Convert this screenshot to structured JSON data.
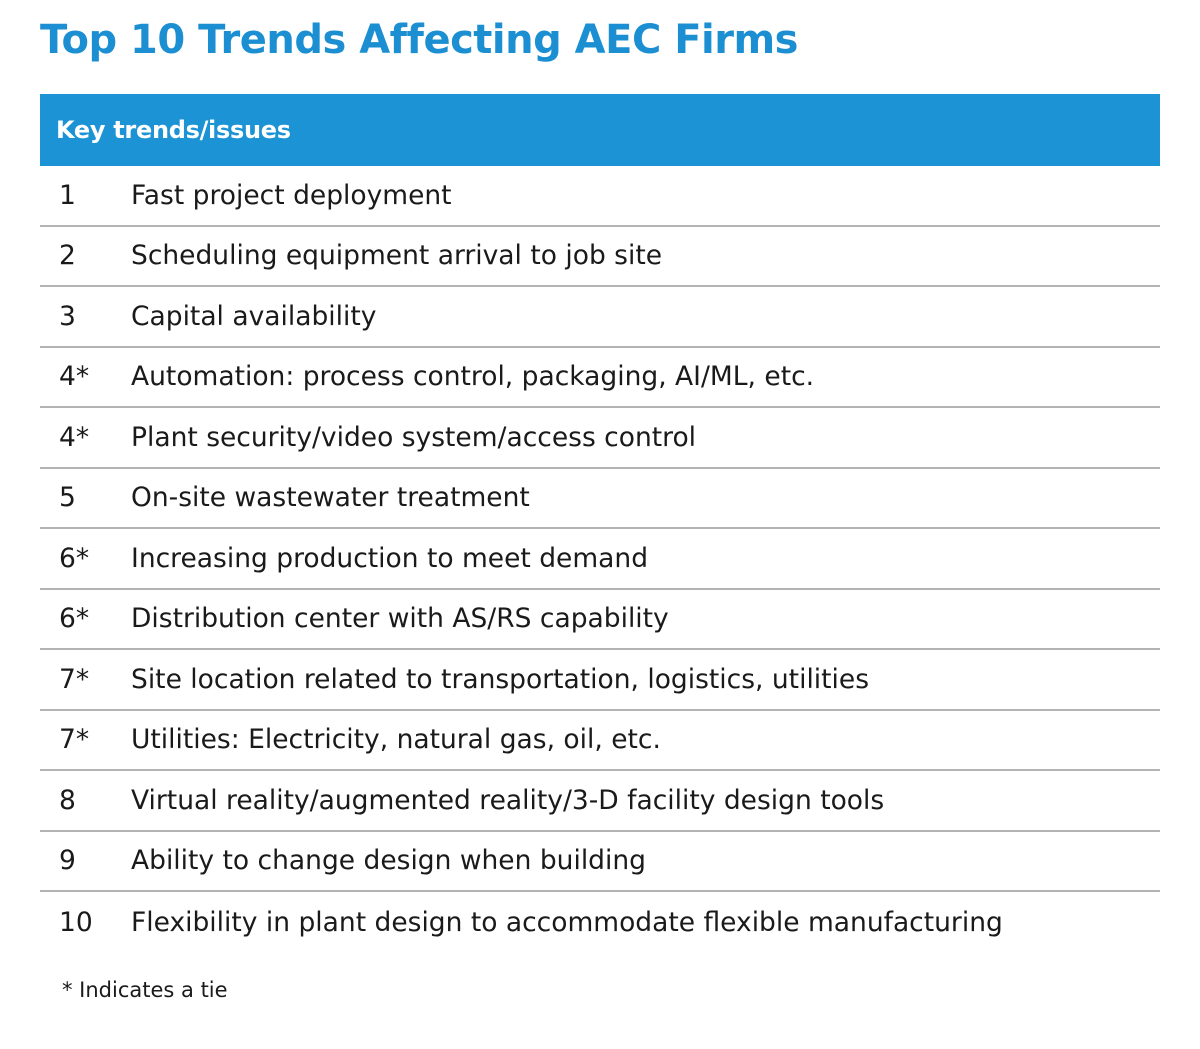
{
  "title": "Top 10 Trends Affecting AEC Firms",
  "table": {
    "header": "Key trends/issues",
    "rows": [
      {
        "rank": "1",
        "label": "Fast project deployment"
      },
      {
        "rank": "2",
        "label": "Scheduling equipment arrival to job site"
      },
      {
        "rank": "3",
        "label": "Capital availability"
      },
      {
        "rank": "4*",
        "label": "Automation: process control, packaging, AI/ML, etc."
      },
      {
        "rank": "4*",
        "label": "Plant security/video system/access control"
      },
      {
        "rank": "5",
        "label": "On-site wastewater treatment"
      },
      {
        "rank": "6*",
        "label": "Increasing production to meet demand"
      },
      {
        "rank": "6*",
        "label": "Distribution center with AS/RS capability"
      },
      {
        "rank": "7*",
        "label": "Site location related to transportation, logistics, utilities"
      },
      {
        "rank": "7*",
        "label": "Utilities: Electricity, natural gas, oil, etc."
      },
      {
        "rank": "8",
        "label": "Virtual reality/augmented reality/3-D facility design tools"
      },
      {
        "rank": "9",
        "label": "Ability to change design when building"
      },
      {
        "rank": "10",
        "label": "Flexibility in plant design to accommodate flexible manufacturing"
      }
    ]
  },
  "footnote": "* Indicates a tie",
  "colors": {
    "accent": "#1b8fd2",
    "header_bg": "#1b93d4",
    "divider": "#b3b3b3"
  }
}
